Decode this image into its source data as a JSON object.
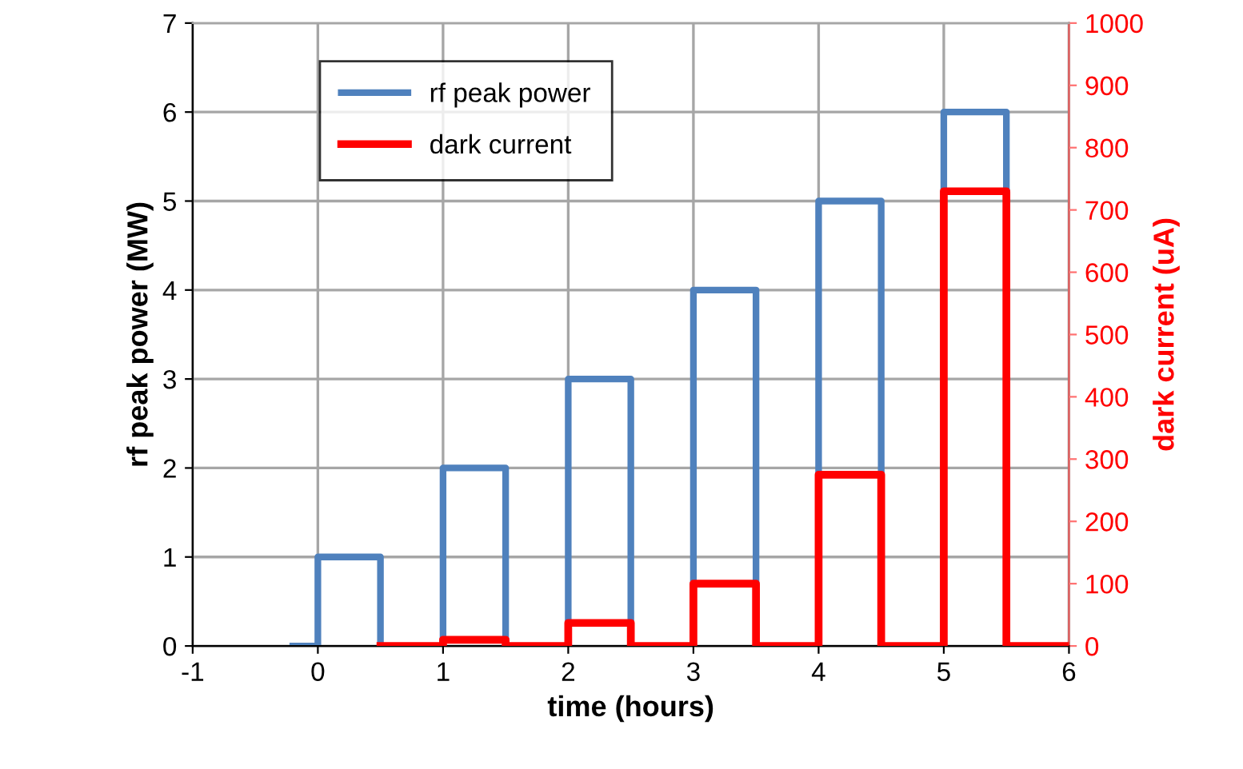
{
  "chart_data": {
    "type": "line",
    "xlabel": "time (hours)",
    "ylabel": "rf peak power (MW)",
    "y2label": "dark current (uA)",
    "series": [
      {
        "name": "rf peak power",
        "color": "#4f81bd",
        "x": [
          -0.2,
          0,
          0,
          0.5,
          0.5,
          1,
          1,
          1.5,
          1.5,
          2,
          2,
          2.5,
          2.5,
          3,
          3,
          3.5,
          3.5,
          4,
          4,
          4.5,
          4.5,
          5,
          5,
          5.5,
          5.5
        ],
        "values": [
          0,
          0,
          1,
          1,
          0,
          0,
          2,
          2,
          0,
          0,
          3,
          3,
          0,
          0,
          4,
          4,
          0,
          0,
          5,
          5,
          0,
          0,
          6,
          6,
          0
        ]
      },
      {
        "name": "dark current",
        "color": "#ff0000",
        "axis": "y2",
        "x": [
          0.5,
          1,
          1,
          1.5,
          1.5,
          2,
          2,
          2.5,
          2.5,
          3,
          3,
          3.5,
          3.5,
          4,
          4,
          4.5,
          4.5,
          5,
          5,
          5.5,
          5.5,
          6
        ],
        "values": [
          0,
          0,
          10,
          10,
          0,
          0,
          37,
          37,
          0,
          0,
          100,
          100,
          0,
          0,
          275,
          275,
          0,
          0,
          730,
          730,
          0,
          0
        ]
      }
    ],
    "xlim": [
      -1,
      6
    ],
    "xticks": [
      -1,
      0,
      1,
      2,
      3,
      4,
      5,
      6
    ],
    "ylim": [
      0,
      7
    ],
    "yticks": [
      0,
      1,
      2,
      3,
      4,
      5,
      6,
      7
    ],
    "y2lim": [
      0,
      1000
    ],
    "y2ticks": [
      0,
      100,
      200,
      300,
      400,
      500,
      600,
      700,
      800,
      900,
      1000
    ],
    "grid": true,
    "legend": "top left",
    "marker": "none",
    "line_style": "solid"
  }
}
